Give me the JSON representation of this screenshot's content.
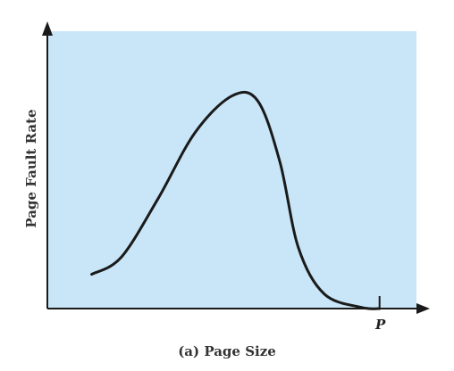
{
  "chart_data": {
    "type": "line",
    "xlabel": "(a) Page Size",
    "ylabel": "Page Fault Rate",
    "x_tick_labels": [
      "P"
    ],
    "grid": false,
    "legend": "none",
    "colors": {
      "plot_background": "#c8e6f8",
      "line": "#1a1a1a",
      "axes": "#1a1a1a",
      "text": "#333333"
    },
    "xlim": [
      0,
      100
    ],
    "ylim": [
      0,
      100
    ],
    "series": [
      {
        "values": [
          {
            "x": 12,
            "y": 14
          },
          {
            "x": 20,
            "y": 21
          },
          {
            "x": 30,
            "y": 45
          },
          {
            "x": 40,
            "y": 72
          },
          {
            "x": 50,
            "y": 87
          },
          {
            "x": 57,
            "y": 85
          },
          {
            "x": 63,
            "y": 60
          },
          {
            "x": 68,
            "y": 25
          },
          {
            "x": 75,
            "y": 6
          },
          {
            "x": 85,
            "y": 0.5
          },
          {
            "x": 90,
            "y": 0
          }
        ]
      }
    ]
  }
}
